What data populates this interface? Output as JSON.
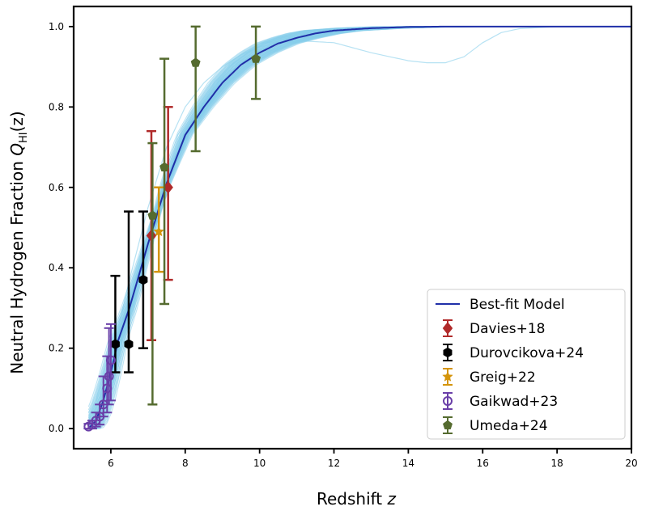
{
  "chart_data": {
    "type": "scatter",
    "title": "",
    "xlabel": "Redshift",
    "xlabel_var": "z",
    "ylabel": "Neutral Hydrogen Fraction",
    "ylabel_var": "Q",
    "ylabel_sub": "HI",
    "ylabel_arg": "(z)",
    "xlim": [
      5,
      20
    ],
    "ylim": [
      -0.05,
      1.05
    ],
    "xticks": [
      6,
      8,
      10,
      12,
      14,
      16,
      18,
      20
    ],
    "yticks": [
      0.0,
      0.2,
      0.4,
      0.6,
      0.8,
      1.0
    ],
    "xtick_labels": [
      "6",
      "8",
      "10",
      "12",
      "14",
      "16",
      "18",
      "20"
    ],
    "ytick_labels": [
      "0.0",
      "0.2",
      "0.4",
      "0.6",
      "0.8",
      "1.0"
    ],
    "legend_position": "lower right",
    "model": {
      "name": "Best-fit Model",
      "color": "#1f2fa8",
      "x": [
        5.4,
        5.6,
        5.8,
        6.0,
        6.2,
        6.5,
        7.0,
        7.5,
        8.0,
        8.5,
        9.0,
        9.5,
        10.0,
        10.5,
        11.0,
        11.5,
        12.0,
        13.0,
        14.0,
        15.0,
        16.0,
        18.0,
        20.0
      ],
      "y": [
        0.0,
        0.02,
        0.07,
        0.14,
        0.22,
        0.3,
        0.46,
        0.61,
        0.73,
        0.8,
        0.86,
        0.905,
        0.935,
        0.958,
        0.972,
        0.983,
        0.99,
        0.996,
        0.999,
        1.0,
        1.0,
        1.0,
        1.0
      ]
    },
    "posterior_band": {
      "name": "posterior samples",
      "color": "#87ceeb",
      "n_samples": 70,
      "outlier": {
        "x": [
          5.4,
          5.6,
          5.8,
          6.0,
          6.5,
          7.0,
          7.5,
          8.0,
          8.5,
          9.0,
          9.5,
          10.0,
          11.0,
          12.0,
          13.0,
          14.0,
          14.5,
          15.0,
          15.5,
          16.0,
          16.5,
          17.0,
          18.0,
          20.0
        ],
        "y": [
          0.0,
          0.03,
          0.09,
          0.17,
          0.37,
          0.55,
          0.7,
          0.8,
          0.86,
          0.9,
          0.93,
          0.95,
          0.965,
          0.96,
          0.935,
          0.915,
          0.91,
          0.91,
          0.925,
          0.96,
          0.985,
          0.995,
          1.0,
          1.0
        ]
      }
    },
    "series": [
      {
        "name": "Davies+18",
        "color": "#b02a2a",
        "marker": "diamond",
        "points": [
          {
            "x": 7.09,
            "y": 0.48,
            "ylo": 0.22,
            "yhi": 0.74
          },
          {
            "x": 7.54,
            "y": 0.6,
            "ylo": 0.37,
            "yhi": 0.8
          }
        ]
      },
      {
        "name": "Durovcikova+24",
        "color": "#000000",
        "marker": "hexagon",
        "points": [
          {
            "x": 6.12,
            "y": 0.21,
            "ylo": 0.14,
            "yhi": 0.38
          },
          {
            "x": 6.48,
            "y": 0.21,
            "ylo": 0.14,
            "yhi": 0.54
          },
          {
            "x": 6.87,
            "y": 0.37,
            "ylo": 0.2,
            "yhi": 0.54
          }
        ]
      },
      {
        "name": "Greig+22",
        "color": "#d4940a",
        "marker": "star",
        "points": [
          {
            "x": 7.29,
            "y": 0.49,
            "ylo": 0.39,
            "yhi": 0.6
          }
        ]
      },
      {
        "name": "Gaikwad+23",
        "color": "#6a3fa8",
        "marker": "circle-open",
        "points": [
          {
            "x": 5.4,
            "y": 0.005,
            "ylo": 0.0,
            "yhi": 0.012
          },
          {
            "x": 5.5,
            "y": 0.01,
            "ylo": 0.0,
            "yhi": 0.02
          },
          {
            "x": 5.6,
            "y": 0.02,
            "ylo": 0.005,
            "yhi": 0.04
          },
          {
            "x": 5.7,
            "y": 0.03,
            "ylo": 0.01,
            "yhi": 0.06
          },
          {
            "x": 5.8,
            "y": 0.06,
            "ylo": 0.03,
            "yhi": 0.13
          },
          {
            "x": 5.9,
            "y": 0.1,
            "ylo": 0.04,
            "yhi": 0.18
          },
          {
            "x": 6.0,
            "y": 0.17,
            "ylo": 0.07,
            "yhi": 0.26
          },
          {
            "x": 5.95,
            "y": 0.13,
            "ylo": 0.06,
            "yhi": 0.25
          }
        ]
      },
      {
        "name": "Umeda+24",
        "color": "#556b2f",
        "marker": "pentagon",
        "points": [
          {
            "x": 7.12,
            "y": 0.53,
            "ylo": 0.06,
            "yhi": 0.71
          },
          {
            "x": 7.44,
            "y": 0.65,
            "ylo": 0.31,
            "yhi": 0.92
          },
          {
            "x": 8.28,
            "y": 0.91,
            "ylo": 0.69,
            "yhi": 1.0
          },
          {
            "x": 9.9,
            "y": 0.92,
            "ylo": 0.82,
            "yhi": 1.0
          }
        ]
      }
    ]
  }
}
